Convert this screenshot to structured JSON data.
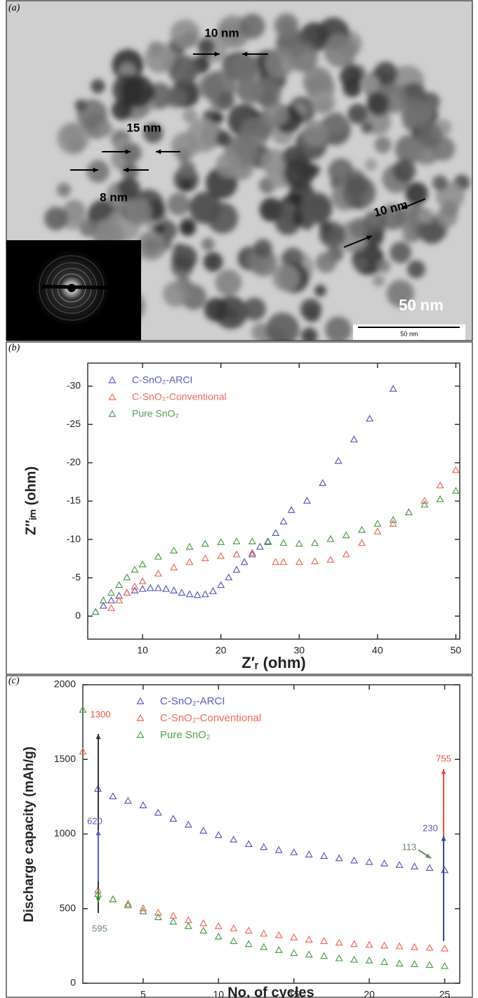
{
  "figure_a": {
    "panel_label": "(a)",
    "annotations": [
      "10 nm",
      "15 nm",
      "8 nm",
      "10 nm"
    ],
    "scale_text": "50 nm",
    "scale_bar_label": "50 nm"
  },
  "chart_data": [
    {
      "type": "scatter",
      "panel_label": "(b)",
      "xlabel": "Z′ᵣ (ohm)",
      "ylabel": "Z″ᵢₘ (ohm)",
      "xlim": [
        3,
        50.5
      ],
      "ylim": [
        3,
        -33
      ],
      "xticks": [
        10,
        20,
        30,
        40,
        50
      ],
      "yticks": [
        0,
        -5,
        -10,
        -15,
        -20,
        -25,
        -30
      ],
      "series": [
        {
          "name": "C-SnO₂-ARCI",
          "color": "#5b5bbb",
          "x": [
            4,
            5,
            6,
            7,
            8,
            9,
            10,
            11,
            12,
            13,
            14,
            15,
            16,
            17,
            18,
            19,
            20,
            21,
            22,
            23,
            24,
            25,
            26,
            27,
            28,
            29,
            31,
            33,
            35,
            37,
            39,
            42
          ],
          "values": [
            -0.5,
            -1.3,
            -2,
            -2.6,
            -3,
            -3.3,
            -3.5,
            -3.6,
            -3.6,
            -3.5,
            -3.3,
            -3,
            -2.8,
            -2.7,
            -2.8,
            -3.2,
            -4,
            -5,
            -6,
            -7,
            -8,
            -9,
            -9.7,
            -10.8,
            -12.3,
            -13.8,
            -15,
            -17.3,
            -20.2,
            -23,
            -25.7,
            -29.6
          ]
        },
        {
          "name": "C-SnO₂-Conventional",
          "color": "#ee6a5a",
          "x": [
            6,
            7,
            8,
            9,
            10,
            12,
            14,
            16,
            18,
            20,
            22,
            24,
            27,
            28,
            30,
            32,
            34,
            36,
            38,
            40,
            42,
            44,
            46,
            48,
            50
          ],
          "values": [
            -1,
            -2,
            -3,
            -3.8,
            -4.5,
            -5.5,
            -6.3,
            -7,
            -7.5,
            -7.8,
            -8,
            -8.2,
            -7,
            -7,
            -7,
            -7.1,
            -7.3,
            -8,
            -9.5,
            -11,
            -12,
            -13.5,
            -15,
            -17,
            -19
          ]
        },
        {
          "name": "Pure SnO₂",
          "color": "#4f9e4f",
          "x": [
            4,
            5,
            6,
            7,
            8,
            9,
            10,
            12,
            14,
            16,
            18,
            20,
            22,
            24,
            26,
            28,
            30,
            32,
            34,
            36,
            38,
            40,
            42,
            44,
            46,
            48,
            50
          ],
          "values": [
            -0.5,
            -2,
            -3,
            -4,
            -5,
            -6,
            -6.7,
            -7.7,
            -8.5,
            -9,
            -9.4,
            -9.6,
            -9.7,
            -9.7,
            -9.6,
            -9.5,
            -9.4,
            -9.5,
            -10,
            -10.5,
            -11.2,
            -12,
            -12.5,
            -13.5,
            -14.5,
            -15.2,
            -16.3
          ]
        }
      ]
    },
    {
      "type": "scatter",
      "panel_label": "(c)",
      "xlabel": "No. of cycles",
      "ylabel": "Discharge capacity (mAh/g)",
      "x": [
        1,
        2,
        3,
        4,
        5,
        6,
        7,
        8,
        9,
        10,
        11,
        12,
        13,
        14,
        15,
        16,
        17,
        18,
        19,
        20,
        21,
        22,
        23,
        24,
        25
      ],
      "xlim": [
        1,
        26
      ],
      "ylim": [
        0,
        2000
      ],
      "xticks": [
        5,
        10,
        15,
        20,
        25
      ],
      "yticks": [
        0,
        500,
        1000,
        1500,
        2000
      ],
      "series": [
        {
          "name": "C-SnO₂-ARCI",
          "color": "#5b5bbb",
          "values": [
            null,
            1300,
            1250,
            1220,
            1190,
            1140,
            1100,
            1060,
            1020,
            990,
            960,
            930,
            910,
            890,
            875,
            860,
            850,
            835,
            820,
            810,
            800,
            790,
            780,
            770,
            755
          ]
        },
        {
          "name": "C-SnO₂-Conventional",
          "color": "#ee6a5a",
          "values": [
            1550,
            620,
            560,
            530,
            500,
            470,
            450,
            420,
            400,
            380,
            365,
            350,
            330,
            320,
            305,
            290,
            280,
            270,
            260,
            255,
            250,
            245,
            240,
            235,
            230
          ]
        },
        {
          "name": "Pure SnO₂",
          "color": "#4f9e4f",
          "values": [
            1830,
            595,
            560,
            520,
            480,
            440,
            410,
            380,
            350,
            310,
            280,
            260,
            240,
            220,
            200,
            190,
            180,
            165,
            155,
            150,
            140,
            130,
            125,
            120,
            113
          ]
        }
      ],
      "annotations": [
        "1300",
        "620",
        "595",
        "755",
        "230",
        "113"
      ]
    }
  ]
}
